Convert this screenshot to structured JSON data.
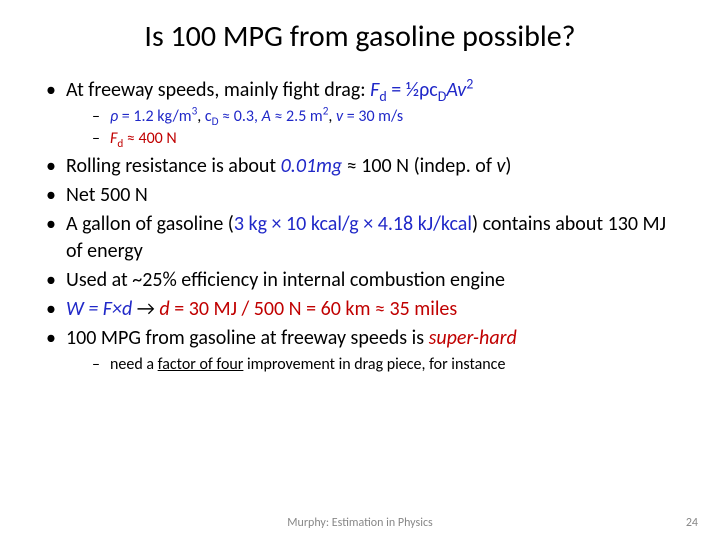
{
  "title": "Is 100 MPG from gasoline possible?",
  "b1": {
    "pre": "At freeway speeds, mainly fight drag: ",
    "formula_lhs": "F",
    "formula_sub": "d",
    "formula_eq": " = ½ρc",
    "formula_csub": "D",
    "formula_post": "Av",
    "formula_sup": "2"
  },
  "b1sub1": {
    "rho": "ρ",
    "rho_eq": " = 1.2 kg/m",
    "rho_sup": "3",
    "sep1": ", ",
    "cd": "c",
    "cd_sub": "D",
    "cd_val": " ≈ 0.3, ",
    "A": "A",
    "A_val": " ≈ 2.5 m",
    "A_sup": "2",
    "sep2": ", ",
    "v": "v",
    "v_val": " = 30 m/s"
  },
  "b1sub2": {
    "F": "F",
    "F_sub": "d",
    "val": " ≈ 400 N"
  },
  "b2": {
    "pre": "Rolling resistance is about ",
    "mg": "0.01mg",
    "post": " ≈ 100 N (indep. of ",
    "v": "v",
    "end": ")"
  },
  "b3": "Net 500 N",
  "b4": {
    "pre": "A gallon of gasoline (",
    "calc": "3 kg × 10 kcal/g × 4.18 kJ/kcal",
    "post": ") contains about 130 MJ of energy"
  },
  "b5": "Used at ~25% efficiency in internal combustion engine",
  "b6": {
    "W": "W = F×d",
    "arrow": " → ",
    "d": "d",
    "rest": " = 30 MJ / 500 N = 60 km ≈ 35 miles"
  },
  "b7": {
    "pre": "100 MPG from gasoline at freeway speeds is ",
    "sh": "super-hard"
  },
  "b7sub": {
    "pre": "need a ",
    "u": "factor of four",
    "post": " improvement in drag piece, for instance"
  },
  "footer": "Murphy: Estimation in Physics",
  "page": "24",
  "colors": {
    "blue": "#2028c8",
    "red": "#c00000",
    "text": "#000000",
    "bg": "#ffffff",
    "footer": "#888888"
  }
}
